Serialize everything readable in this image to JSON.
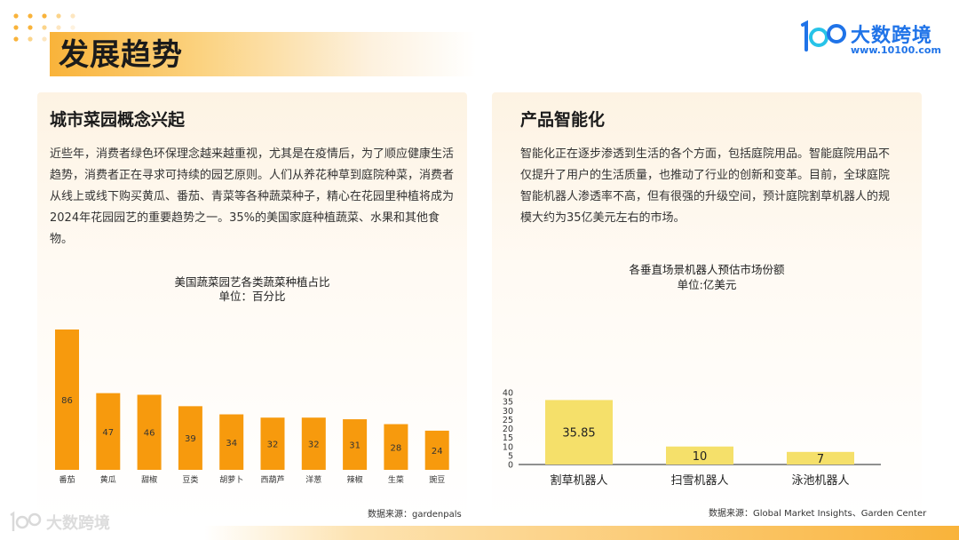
{
  "page": {
    "title": "发展趋势"
  },
  "logo": {
    "brand": "大数跨境",
    "url": "www.10100.com"
  },
  "left_panel": {
    "heading": "城市菜园概念兴起",
    "body": "近些年，消费者绿色环保理念越来越重视，尤其是在疫情后，为了顺应健康生活趋势，消费者正在寻求可持续的园艺原则。人们从养花种草到庭院种菜，消费者从线上或线下购买黄瓜、番茄、青菜等各种蔬菜种子，精心在花园里种植将成为2024年花园园艺的重要趋势之一。35%的美国家庭种植蔬菜、水果和其他食物。",
    "source": "数据来源：gardenpals"
  },
  "right_panel": {
    "heading": "产品智能化",
    "body": "智能化正在逐步渗透到生活的各个方面，包括庭院用品。智能庭院用品不仅提升了用户的生活质量，也推动了行业的创新和变革。目前，全球庭院智能机器人渗透率不高，但有很强的升级空间，预计庭院割草机器人的规模大约为35亿美元左右的市场。",
    "source": "数据来源：Global Market Insights、Garden Center"
  },
  "chart_data": [
    {
      "type": "bar",
      "title": "美国蔬菜园艺各类蔬菜种植占比",
      "subtitle": "单位：百分比",
      "categories": [
        "番茄",
        "黄瓜",
        "甜椒",
        "豆类",
        "胡萝卜",
        "西葫芦",
        "洋葱",
        "辣椒",
        "生菜",
        "豌豆"
      ],
      "values": [
        86,
        47,
        46,
        39,
        34,
        32,
        32,
        31,
        28,
        24
      ],
      "data_labels": [
        "86",
        "47",
        "46",
        "39",
        "34",
        "32",
        "32",
        "31",
        "28",
        "24"
      ],
      "ylim": [
        0,
        86
      ],
      "grid": false,
      "y_axis_visible": false,
      "bar_color": "#f79a0d"
    },
    {
      "type": "bar",
      "title": "各垂直场景机器人预估市场份额",
      "subtitle": "单位:亿美元",
      "categories": [
        "割草机器人",
        "扫雪机器人",
        "泳池机器人"
      ],
      "values": [
        35.85,
        10,
        7
      ],
      "data_labels": [
        "35.85",
        "10",
        "7"
      ],
      "ylim": [
        0,
        40
      ],
      "yticks": [
        "0",
        "5",
        "10",
        "15",
        "20",
        "25",
        "30",
        "35",
        "40"
      ],
      "grid": false,
      "bar_color": "#f5e06a"
    }
  ]
}
